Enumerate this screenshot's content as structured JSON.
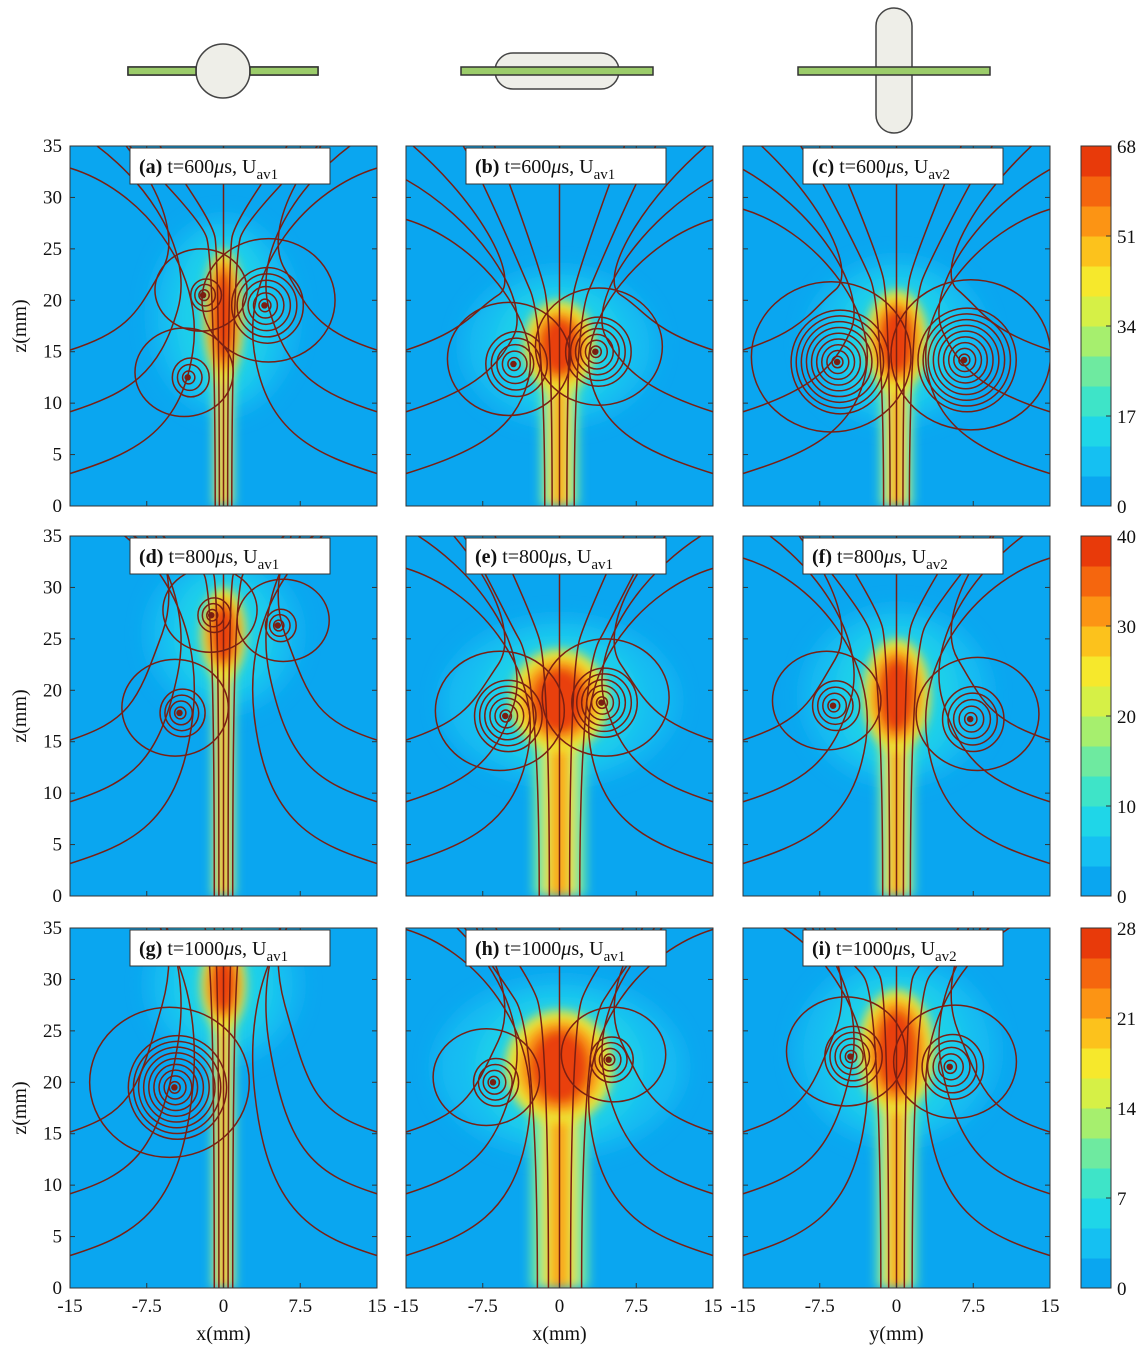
{
  "chart_data": {
    "type": "heatmap",
    "field_colors": [
      "#0aa6f0",
      "#15c0f2",
      "#1fd6e8",
      "#3ee4c8",
      "#6eeaa0",
      "#a6ef6e",
      "#d6f046",
      "#f6e82c",
      "#fcc21c",
      "#fc9414",
      "#f5660e",
      "#e83a0a"
    ],
    "streamline_color": "#7a1f12",
    "shapes": [
      {
        "type": "sphere"
      },
      {
        "type": "horizontal-capsule"
      },
      {
        "type": "vertical-capsule"
      }
    ],
    "shape_colors": {
      "plate": "#9bcc6a",
      "body": "#eeeee8"
    },
    "x_ticks": [
      "-15",
      "-7.5",
      "0",
      "7.5",
      "15"
    ],
    "z_ticks": [
      "0",
      "5",
      "10",
      "15",
      "20",
      "25",
      "30",
      "35"
    ],
    "xlim": [
      -15,
      15
    ],
    "zlim": [
      0,
      35
    ],
    "column_xlabels": [
      "x(mm)",
      "x(mm)",
      "y(mm)"
    ],
    "ylabel": "z(mm)",
    "rows": [
      {
        "colorbar_ticks": [
          "0",
          "17",
          "34",
          "51",
          "68"
        ],
        "colorbar_max": 68,
        "panels": [
          {
            "id": "a",
            "letter": "(a)",
            "text": "t=600",
            "unit": "μs, U",
            "sub": "av1",
            "jet_z": [
              13,
              24
            ],
            "jet_w": 0.9,
            "vortices": [
              [
                -2,
                20.5,
                1.5
              ],
              [
                4,
                19.5,
                3.5
              ],
              [
                -3.5,
                12.5,
                1.8
              ]
            ]
          },
          {
            "id": "b",
            "letter": "(b)",
            "text": "t=600",
            "unit": "μs, U",
            "sub": "av1",
            "jet_z": [
              12,
              19
            ],
            "jet_w": 1.6,
            "vortices": [
              [
                -4.5,
                13.8,
                3
              ],
              [
                3.5,
                15,
                3.2
              ]
            ]
          },
          {
            "id": "c",
            "letter": "(c)",
            "text": "t=600",
            "unit": "μs, U",
            "sub": "av2",
            "jet_z": [
              12,
              20
            ],
            "jet_w": 1.4,
            "vortices": [
              [
                -5.8,
                14,
                4.8
              ],
              [
                6.6,
                14.2,
                4.8
              ]
            ]
          }
        ]
      },
      {
        "colorbar_ticks": [
          "0",
          "10",
          "20",
          "30",
          "40"
        ],
        "colorbar_max": 40,
        "panels": [
          {
            "id": "d",
            "letter": "(d)",
            "text": "t=800",
            "unit": "μs, U",
            "sub": "av1",
            "jet_z": [
              22,
              29
            ],
            "jet_w": 1.0,
            "vortices": [
              [
                -1.2,
                27.3,
                1.6
              ],
              [
                5.3,
                26.3,
                1.5
              ],
              [
                -4.3,
                17.8,
                2.2
              ]
            ]
          },
          {
            "id": "e",
            "letter": "(e)",
            "text": "t=800",
            "unit": "μs, U",
            "sub": "av1",
            "jet_z": [
              15,
              23
            ],
            "jet_w": 2.2,
            "vortices": [
              [
                -5.3,
                17.5,
                3.3
              ],
              [
                4.1,
                18.8,
                3.2
              ]
            ]
          },
          {
            "id": "f",
            "letter": "(f)",
            "text": "t=800",
            "unit": "μs, U",
            "sub": "av2",
            "jet_z": [
              15,
              24
            ],
            "jet_w": 1.5,
            "vortices": [
              [
                -6.2,
                18.5,
                2.3
              ],
              [
                7.2,
                17.2,
                3
              ]
            ]
          }
        ]
      },
      {
        "colorbar_ticks": [
          "0",
          "7",
          "14",
          "21",
          "28"
        ],
        "colorbar_max": 28,
        "panels": [
          {
            "id": "g",
            "letter": "(g)",
            "text": "t=1000",
            "unit": "μs, U",
            "sub": "av1",
            "jet_z": [
              26,
              33
            ],
            "jet_w": 1.0,
            "vortices": [
              [
                -4.8,
                19.5,
                4.8
              ]
            ]
          },
          {
            "id": "h",
            "letter": "(h)",
            "text": "t=1000",
            "unit": "μs, U",
            "sub": "av1",
            "jet_z": [
              17,
              26
            ],
            "jet_w": 2.4,
            "vortices": [
              [
                -6.5,
                20,
                2.2
              ],
              [
                4.8,
                22.2,
                2.1
              ]
            ]
          },
          {
            "id": "i",
            "letter": "(i)",
            "text": "t=1000",
            "unit": "μs, U",
            "sub": "av2",
            "jet_z": [
              18,
              28
            ],
            "jet_w": 1.7,
            "vortices": [
              [
                -4.5,
                22.5,
                2.8
              ],
              [
                5.2,
                21.5,
                3
              ]
            ]
          }
        ]
      }
    ]
  }
}
